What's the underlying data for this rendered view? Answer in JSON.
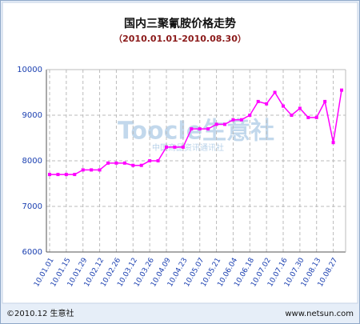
{
  "chart_data": {
    "type": "line",
    "title": "国内三聚氰胺价格走势",
    "subtitle": "（2010.01.01-2010.08.30）",
    "watermark": "Toocle生意社",
    "watermark_sub": "中国商品资讯通讯社",
    "footer_left": "©2010.12 生意社",
    "footer_right": "www.netsun.com",
    "categories": [
      "10.01.01",
      null,
      "10.01.15",
      null,
      "10.01.29",
      null,
      "10.02.12",
      null,
      "10.02.26",
      null,
      "10.03.12",
      null,
      "10.03.26",
      null,
      "10.04.09",
      null,
      "10.04.23",
      null,
      "10.05.07",
      null,
      "10.05.21",
      null,
      "10.06.04",
      null,
      "10.06.18",
      null,
      "10.07.02",
      null,
      "10.07.16",
      null,
      "10.07.30",
      null,
      "10.08.13",
      null,
      "10.08.27",
      null
    ],
    "values": [
      7700,
      7700,
      7700,
      7700,
      7800,
      7800,
      7800,
      7950,
      7950,
      7950,
      7900,
      7900,
      8000,
      8000,
      8300,
      8300,
      8300,
      8700,
      8700,
      8700,
      8800,
      8800,
      8900,
      8900,
      9000,
      9300,
      9250,
      9500,
      9200,
      9000,
      9150,
      8950,
      8950,
      9300,
      8400,
      9550
    ],
    "color": "#ff00ff",
    "ylim": [
      6000,
      10000
    ],
    "yticks": [
      6000,
      7000,
      8000,
      9000,
      10000
    ],
    "grid": true
  }
}
